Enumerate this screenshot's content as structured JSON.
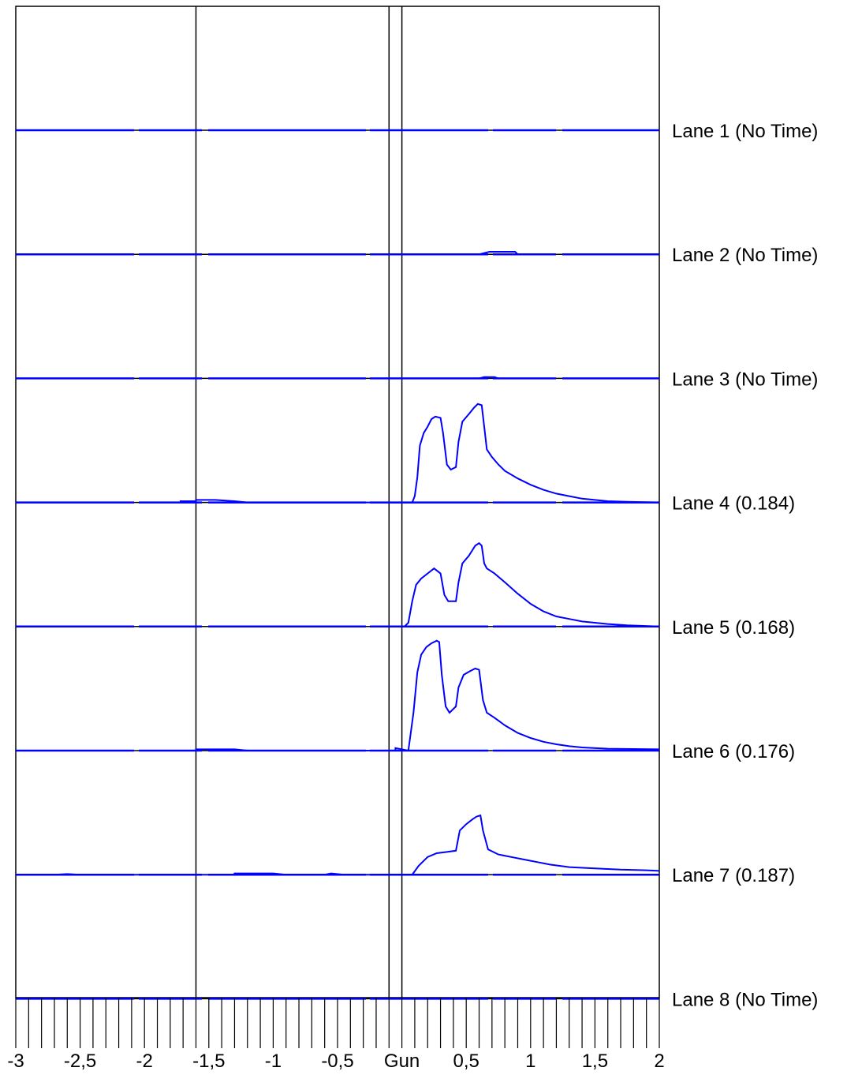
{
  "chart_data": {
    "type": "line",
    "title": "",
    "xlabel": "",
    "ylabel": "",
    "xlim": [
      -3,
      2
    ],
    "grid": false,
    "line_color": "#0000ff",
    "frame_color": "#000000",
    "reference_lines": [
      -1.6,
      -0.1,
      0.0
    ],
    "x_ticks": [
      {
        "value": -3,
        "label": "-3"
      },
      {
        "value": -2.5,
        "label": "-2,5"
      },
      {
        "value": -2,
        "label": "-2"
      },
      {
        "value": -1.5,
        "label": "-1,5"
      },
      {
        "value": -1,
        "label": "-1"
      },
      {
        "value": -0.5,
        "label": "-0,5"
      },
      {
        "value": 0,
        "label": "Gun"
      },
      {
        "value": 0.5,
        "label": "0,5"
      },
      {
        "value": 1,
        "label": "1"
      },
      {
        "value": 1.5,
        "label": "1,5"
      },
      {
        "value": 2,
        "label": "2"
      }
    ],
    "minor_tick_step": 0.1,
    "lanes": [
      {
        "name": "Lane 1 (No Time)",
        "points": []
      },
      {
        "name": "Lane 2 (No Time)",
        "points": [
          [
            0.6,
            0.0
          ],
          [
            0.68,
            0.02
          ],
          [
            0.88,
            0.02
          ],
          [
            0.9,
            0.0
          ]
        ]
      },
      {
        "name": "Lane 3 (No Time)",
        "points": [
          [
            0.6,
            0.0
          ],
          [
            0.64,
            0.01
          ],
          [
            0.72,
            0.01
          ],
          [
            0.75,
            0.0
          ]
        ]
      },
      {
        "name": "Lane 4 (0.184)",
        "points": [
          [
            -1.72,
            0.0
          ],
          [
            -1.72,
            0.01
          ],
          [
            -1.6,
            0.01
          ],
          [
            -1.6,
            0.02
          ],
          [
            -1.45,
            0.02
          ],
          [
            -1.3,
            0.01
          ],
          [
            -1.2,
            0.0
          ],
          [
            0.08,
            0.0
          ],
          [
            0.1,
            0.05
          ],
          [
            0.12,
            0.2
          ],
          [
            0.14,
            0.45
          ],
          [
            0.17,
            0.55
          ],
          [
            0.2,
            0.6
          ],
          [
            0.23,
            0.66
          ],
          [
            0.26,
            0.68
          ],
          [
            0.3,
            0.67
          ],
          [
            0.32,
            0.55
          ],
          [
            0.35,
            0.3
          ],
          [
            0.38,
            0.26
          ],
          [
            0.42,
            0.28
          ],
          [
            0.44,
            0.48
          ],
          [
            0.47,
            0.64
          ],
          [
            0.52,
            0.7
          ],
          [
            0.56,
            0.75
          ],
          [
            0.59,
            0.78
          ],
          [
            0.62,
            0.77
          ],
          [
            0.64,
            0.6
          ],
          [
            0.66,
            0.42
          ],
          [
            0.7,
            0.36
          ],
          [
            0.75,
            0.3
          ],
          [
            0.8,
            0.25
          ],
          [
            0.9,
            0.19
          ],
          [
            1.0,
            0.14
          ],
          [
            1.1,
            0.1
          ],
          [
            1.2,
            0.07
          ],
          [
            1.3,
            0.05
          ],
          [
            1.4,
            0.03
          ],
          [
            1.5,
            0.02
          ],
          [
            1.6,
            0.01
          ],
          [
            1.75,
            0.005
          ],
          [
            2.0,
            0.0
          ]
        ]
      },
      {
        "name": "Lane 5 (0.168)",
        "points": [
          [
            0.02,
            0.0
          ],
          [
            0.05,
            0.03
          ],
          [
            0.08,
            0.2
          ],
          [
            0.11,
            0.33
          ],
          [
            0.15,
            0.38
          ],
          [
            0.2,
            0.42
          ],
          [
            0.25,
            0.46
          ],
          [
            0.3,
            0.42
          ],
          [
            0.33,
            0.25
          ],
          [
            0.36,
            0.2
          ],
          [
            0.42,
            0.2
          ],
          [
            0.44,
            0.35
          ],
          [
            0.47,
            0.5
          ],
          [
            0.52,
            0.56
          ],
          [
            0.57,
            0.64
          ],
          [
            0.6,
            0.66
          ],
          [
            0.62,
            0.64
          ],
          [
            0.64,
            0.5
          ],
          [
            0.66,
            0.46
          ],
          [
            0.72,
            0.42
          ],
          [
            0.8,
            0.35
          ],
          [
            0.9,
            0.26
          ],
          [
            1.0,
            0.18
          ],
          [
            1.1,
            0.12
          ],
          [
            1.2,
            0.08
          ],
          [
            1.3,
            0.06
          ],
          [
            1.4,
            0.04
          ],
          [
            1.5,
            0.03
          ],
          [
            1.6,
            0.02
          ],
          [
            1.75,
            0.01
          ],
          [
            2.0,
            0.0
          ]
        ]
      },
      {
        "name": "Lane 6 (0.176)",
        "points": [
          [
            -1.6,
            0.0
          ],
          [
            -1.6,
            0.01
          ],
          [
            -1.3,
            0.01
          ],
          [
            -1.2,
            0.0
          ],
          [
            -0.05,
            0.0
          ],
          [
            -0.05,
            0.02
          ],
          [
            0.05,
            0.0
          ],
          [
            0.09,
            0.3
          ],
          [
            0.12,
            0.62
          ],
          [
            0.15,
            0.76
          ],
          [
            0.19,
            0.82
          ],
          [
            0.23,
            0.85
          ],
          [
            0.27,
            0.87
          ],
          [
            0.29,
            0.86
          ],
          [
            0.31,
            0.6
          ],
          [
            0.34,
            0.35
          ],
          [
            0.37,
            0.3
          ],
          [
            0.42,
            0.35
          ],
          [
            0.44,
            0.5
          ],
          [
            0.48,
            0.6
          ],
          [
            0.53,
            0.63
          ],
          [
            0.57,
            0.65
          ],
          [
            0.6,
            0.64
          ],
          [
            0.63,
            0.4
          ],
          [
            0.66,
            0.3
          ],
          [
            0.72,
            0.26
          ],
          [
            0.8,
            0.2
          ],
          [
            0.9,
            0.14
          ],
          [
            1.0,
            0.1
          ],
          [
            1.1,
            0.07
          ],
          [
            1.2,
            0.05
          ],
          [
            1.3,
            0.035
          ],
          [
            1.4,
            0.025
          ],
          [
            1.6,
            0.015
          ],
          [
            2.0,
            0.01
          ]
        ]
      },
      {
        "name": "Lane 7 (0.187)",
        "points": [
          [
            -2.7,
            0.0
          ],
          [
            -2.6,
            0.005
          ],
          [
            -2.5,
            0.0
          ],
          [
            -1.3,
            0.0
          ],
          [
            -1.3,
            0.01
          ],
          [
            -1.0,
            0.01
          ],
          [
            -0.9,
            0.0
          ],
          [
            -0.6,
            0.0
          ],
          [
            -0.55,
            0.01
          ],
          [
            -0.45,
            0.0
          ],
          [
            0.08,
            0.0
          ],
          [
            0.13,
            0.07
          ],
          [
            0.2,
            0.14
          ],
          [
            0.27,
            0.17
          ],
          [
            0.35,
            0.18
          ],
          [
            0.42,
            0.19
          ],
          [
            0.45,
            0.35
          ],
          [
            0.5,
            0.4
          ],
          [
            0.55,
            0.44
          ],
          [
            0.58,
            0.46
          ],
          [
            0.61,
            0.47
          ],
          [
            0.63,
            0.35
          ],
          [
            0.67,
            0.2
          ],
          [
            0.75,
            0.16
          ],
          [
            0.85,
            0.14
          ],
          [
            0.95,
            0.12
          ],
          [
            1.05,
            0.1
          ],
          [
            1.15,
            0.08
          ],
          [
            1.3,
            0.06
          ],
          [
            1.5,
            0.05
          ],
          [
            1.7,
            0.04
          ],
          [
            1.9,
            0.035
          ],
          [
            2.0,
            0.03
          ]
        ]
      },
      {
        "name": "Lane 8 (No Time)",
        "points": []
      }
    ]
  }
}
